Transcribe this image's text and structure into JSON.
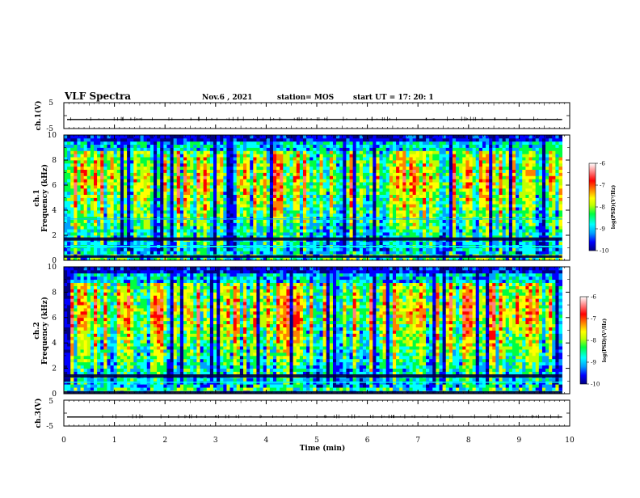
{
  "header": {
    "title": "VLF Spectra",
    "date": "Nov.6 , 2021",
    "station": "station= MOS",
    "start": "start UT = 17: 20: 1"
  },
  "chart_data": [
    {
      "type": "line",
      "name": "ch1-waveform",
      "ylabel": "ch.1(V)",
      "ylim": [
        -5,
        5
      ],
      "yticks": [
        "5",
        "-5"
      ],
      "xlim": [
        0,
        10
      ],
      "baseline": -1.5
    },
    {
      "type": "heatmap",
      "name": "ch1-spectrogram",
      "ylabel": "ch.1 Frequency (kHz)",
      "ylim": [
        0,
        10
      ],
      "yticks": [
        "0",
        "2",
        "4",
        "6",
        "8",
        "10"
      ],
      "xlim": [
        0,
        9.85
      ],
      "colorbar": {
        "label": "log(PSD)(V²/Hz)",
        "range": [
          -10,
          -6
        ],
        "ticks": [
          "-6",
          "-7",
          "-8",
          "-9",
          "-10"
        ],
        "colors": [
          "#000080",
          "#0000ff",
          "#00a0ff",
          "#00ffff",
          "#00ff40",
          "#c0ff00",
          "#ffff00",
          "#ff8000",
          "#ff0000",
          "#ff8080",
          "#ffffff"
        ]
      }
    },
    {
      "type": "heatmap",
      "name": "ch2-spectrogram",
      "ylabel": "ch.2 Frequency (kHz)",
      "ylim": [
        0,
        10
      ],
      "yticks": [
        "0",
        "2",
        "4",
        "6",
        "8",
        "10"
      ],
      "xlim": [
        0,
        9.85
      ],
      "colorbar": {
        "label": "log(PSD)(V²/Hz)",
        "range": [
          -10,
          -6
        ],
        "ticks": [
          "-6",
          "-7",
          "-8",
          "-9",
          "-10"
        ],
        "colors": [
          "#000080",
          "#0000ff",
          "#00a0ff",
          "#00ffff",
          "#00ff40",
          "#c0ff00",
          "#ffff00",
          "#ff8000",
          "#ff0000",
          "#ff8080",
          "#ffffff"
        ]
      }
    },
    {
      "type": "line",
      "name": "ch3-waveform",
      "ylabel": "ch.3(V)",
      "ylim": [
        -5,
        5
      ],
      "yticks": [
        "5",
        "-5"
      ],
      "xlim": [
        0,
        10
      ],
      "baseline": -1.5
    }
  ],
  "xaxis": {
    "label": "Time (min)",
    "ticks": [
      "0",
      "1",
      "2",
      "3",
      "4",
      "5",
      "6",
      "7",
      "8",
      "9",
      "10"
    ],
    "range": [
      0,
      10
    ]
  }
}
